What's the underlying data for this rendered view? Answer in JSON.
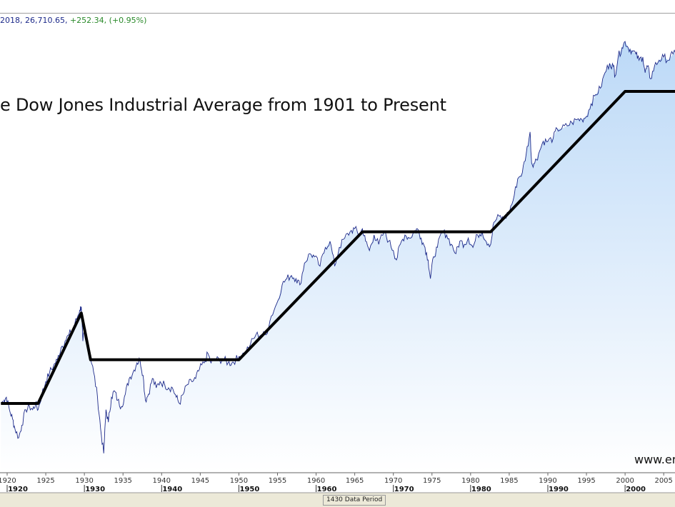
{
  "header": {
    "date_value": "2018, 26,710.65,",
    "change_value": "+252.34, (+0.95%)"
  },
  "title": "e Dow Jones Industrial Average from 1901 to Present",
  "watermark": "www.er",
  "status_bar": {
    "data_period": "1430 Data Period"
  },
  "colors": {
    "price_line": "#1d2a8a",
    "trend_line": "#000000",
    "fill_top": "#bcd9f7",
    "fill_bottom": "#ffffff",
    "header_change": "#2a8a2a"
  },
  "chart_data": {
    "type": "line",
    "title": "e Dow Jones Industrial Average from 1901 to Present",
    "scale": "log",
    "x_range": [
      1919.2,
      2006.9
    ],
    "y_range": [
      -14,
      130
    ],
    "note": "y values are relative log-scale levels (no y-axis labels visible); 0 = 1921-1924 flat band level, 100 = 2000-2007 peak level",
    "minor_ticks": [
      "1920",
      "1925",
      "1930",
      "1935",
      "1940",
      "1945",
      "1950",
      "1955",
      "1960",
      "1965",
      "1970",
      "1975",
      "1980",
      "1985",
      "1990",
      "1995",
      "2000",
      "2005"
    ],
    "major_ticks": [
      "1920",
      "1930",
      "1940",
      "1950",
      "1960",
      "1970",
      "1980",
      "1990",
      "2000"
    ],
    "trend_lines": [
      [
        [
          1919.2,
          0
        ],
        [
          1924,
          0
        ],
        [
          1929.6,
          29
        ],
        [
          1930.8,
          14
        ],
        [
          1950,
          14
        ],
        [
          1966,
          55
        ],
        [
          1982.6,
          55
        ],
        [
          2000,
          100
        ],
        [
          2006.9,
          100
        ]
      ]
    ],
    "series": [
      {
        "name": "Dow Jones Industrial Average",
        "points": [
          [
            1919.2,
            0
          ],
          [
            1919.6,
            1
          ],
          [
            1919.9,
            2
          ],
          [
            1920.3,
            -2
          ],
          [
            1920.7,
            -5
          ],
          [
            1921.0,
            -8
          ],
          [
            1921.5,
            -11
          ],
          [
            1921.9,
            -7
          ],
          [
            1922.4,
            -2
          ],
          [
            1922.9,
            -1
          ],
          [
            1923.3,
            -2
          ],
          [
            1923.7,
            0
          ],
          [
            1924.0,
            -2
          ],
          [
            1924.5,
            3
          ],
          [
            1925.0,
            7
          ],
          [
            1925.5,
            10
          ],
          [
            1926.0,
            12
          ],
          [
            1926.5,
            14
          ],
          [
            1927.0,
            18
          ],
          [
            1927.5,
            20
          ],
          [
            1928.0,
            22
          ],
          [
            1928.5,
            24
          ],
          [
            1929.0,
            27
          ],
          [
            1929.4,
            30
          ],
          [
            1929.6,
            31
          ],
          [
            1929.8,
            20
          ],
          [
            1930.1,
            24
          ],
          [
            1930.3,
            21
          ],
          [
            1930.7,
            16
          ],
          [
            1931.2,
            10
          ],
          [
            1931.7,
            2
          ],
          [
            1932.1,
            -8
          ],
          [
            1932.5,
            -16
          ],
          [
            1932.8,
            -2
          ],
          [
            1933.1,
            -6
          ],
          [
            1933.5,
            2
          ],
          [
            1933.9,
            4
          ],
          [
            1934.3,
            1
          ],
          [
            1934.8,
            -1
          ],
          [
            1935.3,
            3
          ],
          [
            1935.8,
            8
          ],
          [
            1936.3,
            10
          ],
          [
            1936.8,
            13
          ],
          [
            1937.2,
            14
          ],
          [
            1937.6,
            9
          ],
          [
            1937.9,
            1
          ],
          [
            1938.3,
            3
          ],
          [
            1938.8,
            8
          ],
          [
            1939.3,
            5
          ],
          [
            1939.8,
            7
          ],
          [
            1940.4,
            6
          ],
          [
            1940.9,
            5
          ],
          [
            1941.4,
            5
          ],
          [
            1941.9,
            2
          ],
          [
            1942.3,
            0
          ],
          [
            1942.8,
            3
          ],
          [
            1943.3,
            6
          ],
          [
            1943.9,
            7
          ],
          [
            1944.4,
            8
          ],
          [
            1944.9,
            11
          ],
          [
            1945.5,
            13
          ],
          [
            1946.0,
            16
          ],
          [
            1946.4,
            13
          ],
          [
            1946.9,
            14
          ],
          [
            1947.5,
            14
          ],
          [
            1948.1,
            14
          ],
          [
            1948.6,
            13
          ],
          [
            1949.1,
            13
          ],
          [
            1949.6,
            14
          ],
          [
            1950.0,
            15
          ],
          [
            1950.7,
            16
          ],
          [
            1951.5,
            19
          ],
          [
            1952.2,
            22
          ],
          [
            1952.9,
            22
          ],
          [
            1953.5,
            22
          ],
          [
            1954.2,
            28
          ],
          [
            1954.9,
            32
          ],
          [
            1955.6,
            38
          ],
          [
            1956.2,
            40
          ],
          [
            1956.8,
            41
          ],
          [
            1957.4,
            40
          ],
          [
            1957.9,
            38
          ],
          [
            1958.5,
            45
          ],
          [
            1959.2,
            48
          ],
          [
            1959.8,
            47
          ],
          [
            1960.5,
            44
          ],
          [
            1961.2,
            50
          ],
          [
            1961.8,
            52
          ],
          [
            1962.4,
            44
          ],
          [
            1963.0,
            50
          ],
          [
            1963.7,
            53
          ],
          [
            1964.4,
            55
          ],
          [
            1965.0,
            56
          ],
          [
            1965.6,
            54
          ],
          [
            1966.0,
            56
          ],
          [
            1966.4,
            52
          ],
          [
            1966.9,
            49
          ],
          [
            1967.5,
            54
          ],
          [
            1968.1,
            51
          ],
          [
            1968.8,
            55
          ],
          [
            1969.4,
            52
          ],
          [
            1970.0,
            49
          ],
          [
            1970.4,
            46
          ],
          [
            1970.9,
            51
          ],
          [
            1971.5,
            54
          ],
          [
            1972.1,
            53
          ],
          [
            1972.7,
            55
          ],
          [
            1973.1,
            56
          ],
          [
            1973.6,
            53
          ],
          [
            1974.1,
            50
          ],
          [
            1974.5,
            46
          ],
          [
            1974.8,
            40
          ],
          [
            1975.2,
            47
          ],
          [
            1975.7,
            50
          ],
          [
            1976.3,
            55
          ],
          [
            1976.9,
            54
          ],
          [
            1977.5,
            51
          ],
          [
            1978.1,
            48
          ],
          [
            1978.6,
            52
          ],
          [
            1979.2,
            51
          ],
          [
            1979.7,
            53
          ],
          [
            1980.3,
            50
          ],
          [
            1980.9,
            54
          ],
          [
            1981.5,
            55
          ],
          [
            1982.0,
            52
          ],
          [
            1982.6,
            51
          ],
          [
            1983.0,
            58
          ],
          [
            1983.7,
            60
          ],
          [
            1984.3,
            59
          ],
          [
            1984.9,
            61
          ],
          [
            1985.5,
            65
          ],
          [
            1986.1,
            72
          ],
          [
            1986.7,
            74
          ],
          [
            1987.2,
            80
          ],
          [
            1987.7,
            87
          ],
          [
            1987.9,
            77
          ],
          [
            1988.3,
            77
          ],
          [
            1988.8,
            80
          ],
          [
            1989.4,
            84
          ],
          [
            1990.0,
            84
          ],
          [
            1990.7,
            85
          ],
          [
            1991.2,
            88
          ],
          [
            1991.8,
            88
          ],
          [
            1992.5,
            89
          ],
          [
            1993.1,
            90
          ],
          [
            1993.8,
            91
          ],
          [
            1994.4,
            91
          ],
          [
            1995.0,
            92
          ],
          [
            1995.6,
            96
          ],
          [
            1996.2,
            99
          ],
          [
            1996.8,
            101
          ],
          [
            1997.4,
            106
          ],
          [
            1998.0,
            109
          ],
          [
            1998.5,
            108
          ],
          [
            1998.7,
            105
          ],
          [
            1999.1,
            111
          ],
          [
            1999.6,
            114
          ],
          [
            2000.0,
            116
          ],
          [
            2000.4,
            114
          ],
          [
            2000.9,
            113
          ],
          [
            2001.4,
            112
          ],
          [
            2001.8,
            110
          ],
          [
            2002.3,
            111
          ],
          [
            2002.6,
            106
          ],
          [
            2002.9,
            108
          ],
          [
            2003.3,
            104
          ],
          [
            2003.8,
            108
          ],
          [
            2004.4,
            110
          ],
          [
            2005.0,
            111
          ],
          [
            2005.6,
            110
          ],
          [
            2006.2,
            112
          ],
          [
            2006.9,
            114
          ]
        ]
      }
    ]
  }
}
